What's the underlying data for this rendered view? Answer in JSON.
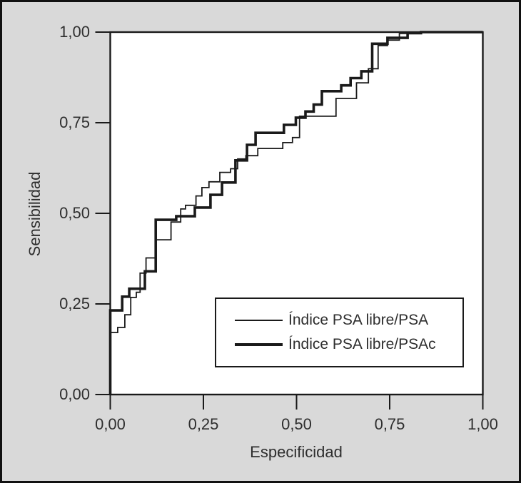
{
  "window": {
    "background": "#d9d9d9",
    "plot_background": "#ffffff",
    "frame_color": "#1a1a1a",
    "text_color": "#2e2e2e"
  },
  "chart_data": {
    "type": "line",
    "variant": "roc_step_curves",
    "title": "",
    "xlabel": "Especificidad",
    "ylabel": "Sensibilidad",
    "xlim": [
      0,
      1
    ],
    "ylim": [
      0,
      1
    ],
    "grid": false,
    "decimal_separator": ",",
    "ticks": {
      "values": [
        0,
        0.25,
        0.5,
        0.75,
        1
      ],
      "x_labels": [
        "0,00",
        "0,25",
        "0,50",
        "0,75",
        "1,00"
      ],
      "y_labels": [
        "0,00",
        "0,25",
        "0,50",
        "0,75",
        "1,00"
      ]
    },
    "legend": {
      "position": "inside-bottom-right",
      "items": [
        {
          "label": "Índice PSA libre/PSA",
          "weight": "thin"
        },
        {
          "label": "Índice PSA libre/PSAc",
          "weight": "thick"
        }
      ]
    },
    "series": [
      {
        "name": "Índice PSA libre/PSA",
        "weight": "thin",
        "stroke_px": 1.8,
        "color": "#1a1a1a",
        "points": [
          [
            0,
            0
          ],
          [
            0,
            0.171
          ],
          [
            0.02,
            0.171
          ],
          [
            0.02,
            0.185
          ],
          [
            0.039,
            0.185
          ],
          [
            0.039,
            0.22
          ],
          [
            0.055,
            0.22
          ],
          [
            0.055,
            0.268
          ],
          [
            0.07,
            0.268
          ],
          [
            0.07,
            0.282
          ],
          [
            0.08,
            0.282
          ],
          [
            0.08,
            0.335
          ],
          [
            0.096,
            0.335
          ],
          [
            0.096,
            0.377
          ],
          [
            0.122,
            0.377
          ],
          [
            0.122,
            0.427
          ],
          [
            0.163,
            0.427
          ],
          [
            0.163,
            0.476
          ],
          [
            0.189,
            0.476
          ],
          [
            0.189,
            0.512
          ],
          [
            0.202,
            0.512
          ],
          [
            0.202,
            0.522
          ],
          [
            0.23,
            0.522
          ],
          [
            0.23,
            0.548
          ],
          [
            0.246,
            0.548
          ],
          [
            0.246,
            0.571
          ],
          [
            0.265,
            0.571
          ],
          [
            0.265,
            0.587
          ],
          [
            0.294,
            0.587
          ],
          [
            0.294,
            0.613
          ],
          [
            0.323,
            0.613
          ],
          [
            0.323,
            0.623
          ],
          [
            0.342,
            0.623
          ],
          [
            0.342,
            0.65
          ],
          [
            0.364,
            0.65
          ],
          [
            0.364,
            0.659
          ],
          [
            0.396,
            0.659
          ],
          [
            0.396,
            0.679
          ],
          [
            0.463,
            0.679
          ],
          [
            0.463,
            0.695
          ],
          [
            0.489,
            0.695
          ],
          [
            0.489,
            0.709
          ],
          [
            0.508,
            0.709
          ],
          [
            0.508,
            0.768
          ],
          [
            0.606,
            0.768
          ],
          [
            0.606,
            0.817
          ],
          [
            0.661,
            0.817
          ],
          [
            0.661,
            0.86
          ],
          [
            0.693,
            0.86
          ],
          [
            0.693,
            0.899
          ],
          [
            0.719,
            0.899
          ],
          [
            0.719,
            0.963
          ],
          [
            0.744,
            0.963
          ],
          [
            0.744,
            0.978
          ],
          [
            0.776,
            0.978
          ],
          [
            0.776,
            0.996
          ],
          [
            0.834,
            0.996
          ],
          [
            0.834,
            1
          ],
          [
            1,
            1
          ]
        ]
      },
      {
        "name": "Índice PSA libre/PSAc",
        "weight": "thick",
        "stroke_px": 3.6,
        "color": "#1a1a1a",
        "points": [
          [
            0,
            0
          ],
          [
            0,
            0.232
          ],
          [
            0.032,
            0.232
          ],
          [
            0.032,
            0.27
          ],
          [
            0.051,
            0.27
          ],
          [
            0.051,
            0.292
          ],
          [
            0.093,
            0.292
          ],
          [
            0.093,
            0.34
          ],
          [
            0.122,
            0.34
          ],
          [
            0.122,
            0.482
          ],
          [
            0.177,
            0.482
          ],
          [
            0.177,
            0.492
          ],
          [
            0.227,
            0.492
          ],
          [
            0.227,
            0.516
          ],
          [
            0.269,
            0.516
          ],
          [
            0.269,
            0.551
          ],
          [
            0.3,
            0.551
          ],
          [
            0.3,
            0.585
          ],
          [
            0.336,
            0.585
          ],
          [
            0.336,
            0.646
          ],
          [
            0.367,
            0.646
          ],
          [
            0.367,
            0.689
          ],
          [
            0.39,
            0.689
          ],
          [
            0.39,
            0.722
          ],
          [
            0.466,
            0.722
          ],
          [
            0.466,
            0.744
          ],
          [
            0.498,
            0.744
          ],
          [
            0.498,
            0.764
          ],
          [
            0.524,
            0.764
          ],
          [
            0.524,
            0.781
          ],
          [
            0.546,
            0.781
          ],
          [
            0.546,
            0.8
          ],
          [
            0.568,
            0.8
          ],
          [
            0.568,
            0.837
          ],
          [
            0.62,
            0.837
          ],
          [
            0.62,
            0.853
          ],
          [
            0.645,
            0.853
          ],
          [
            0.645,
            0.873
          ],
          [
            0.674,
            0.873
          ],
          [
            0.674,
            0.892
          ],
          [
            0.703,
            0.892
          ],
          [
            0.703,
            0.968
          ],
          [
            0.744,
            0.968
          ],
          [
            0.744,
            0.984
          ],
          [
            0.798,
            0.984
          ],
          [
            0.798,
            0.997
          ],
          [
            0.834,
            0.997
          ],
          [
            0.834,
            1
          ],
          [
            1,
            1
          ]
        ]
      }
    ]
  }
}
